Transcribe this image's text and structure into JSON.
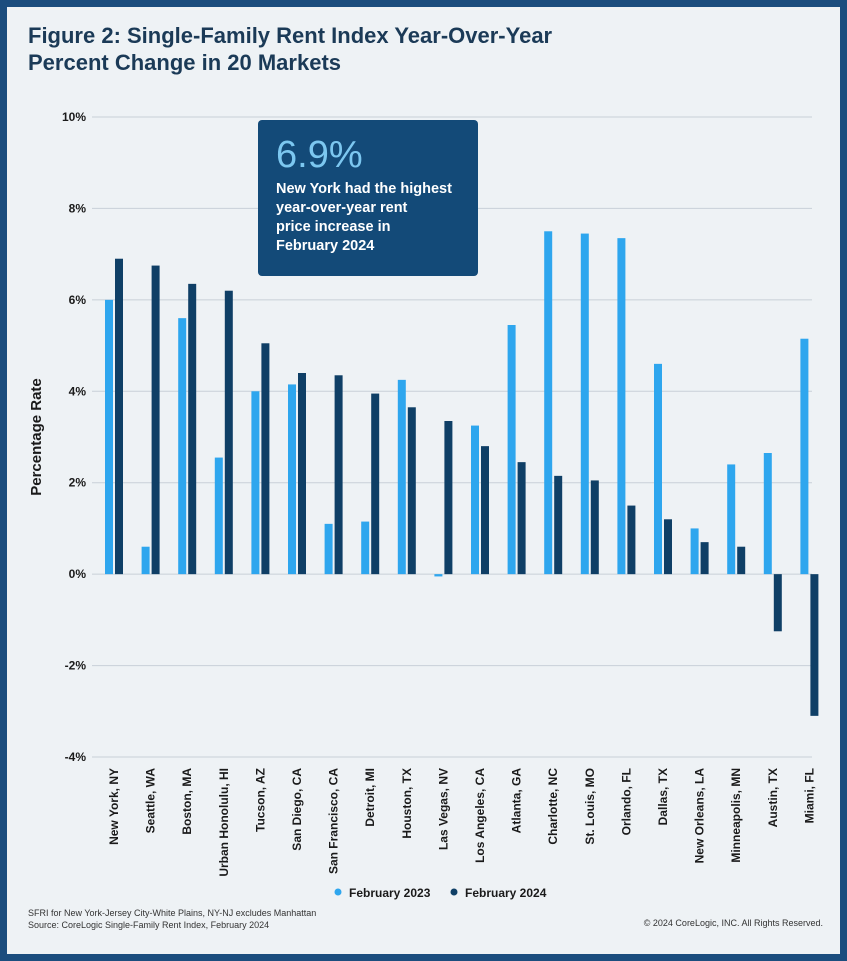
{
  "title_line1": "Figure 2: Single-Family Rent Index Year-Over-Year",
  "title_line2": "Percent Change in 20 Markets",
  "callout": {
    "value": "6.9%",
    "text_lines": [
      "New York had the highest",
      "year-over-year rent",
      "price increase in",
      "February 2024"
    ]
  },
  "footnote_line1": "SFRI for New York-Jersey City-White Plains, NY-NJ excludes Manhattan",
  "footnote_line2": "Source: CoreLogic Single-Family Rent Index, February 2024",
  "copyright": "© 2024 CoreLogic, INC. All Rights Reserved.",
  "colors": {
    "series1": "#2ea6ee",
    "series2": "#0f3f66",
    "grid": "#c8d0d8",
    "axis_text": "#1a1a1a"
  },
  "chart_data": {
    "type": "bar",
    "title": "Figure 2: Single-Family Rent Index Year-Over-Year Percent Change in 20 Markets",
    "xlabel": "",
    "ylabel": "Percentage Rate",
    "ylim": [
      -4,
      10
    ],
    "yticks": [
      10,
      8,
      6,
      4,
      2,
      0,
      -2,
      -4
    ],
    "ytick_labels": [
      "10%",
      "8%",
      "6%",
      "4%",
      "2%",
      "0%",
      "-2%",
      "-4%"
    ],
    "grid": true,
    "legend": "bottom",
    "categories": [
      "New York, NY",
      "Seattle, WA",
      "Boston, MA",
      "Urban Honolulu, HI",
      "Tucson, AZ",
      "San Diego, CA",
      "San Francisco, CA",
      "Detroit, MI",
      "Houston, TX",
      "Las Vegas, NV",
      "Los Angeles, CA",
      "Atlanta, GA",
      "Charlotte, NC",
      "St. Louis, MO",
      "Orlando, FL",
      "Dallas, TX",
      "New Orleans, LA",
      "Minneapolis, MN",
      "Austin, TX",
      "Miami, FL"
    ],
    "series": [
      {
        "name": "February 2023",
        "values": [
          6.0,
          0.6,
          5.6,
          2.55,
          4.0,
          4.15,
          1.1,
          1.15,
          4.25,
          -0.05,
          3.25,
          5.45,
          7.5,
          7.45,
          7.35,
          4.6,
          1.0,
          2.4,
          2.65,
          5.15
        ]
      },
      {
        "name": "February 2024",
        "values": [
          6.9,
          6.75,
          6.35,
          6.2,
          5.05,
          4.4,
          4.35,
          3.95,
          3.65,
          3.35,
          2.8,
          2.45,
          2.15,
          2.05,
          1.5,
          1.2,
          0.7,
          0.6,
          -1.25,
          -3.1
        ]
      }
    ]
  }
}
